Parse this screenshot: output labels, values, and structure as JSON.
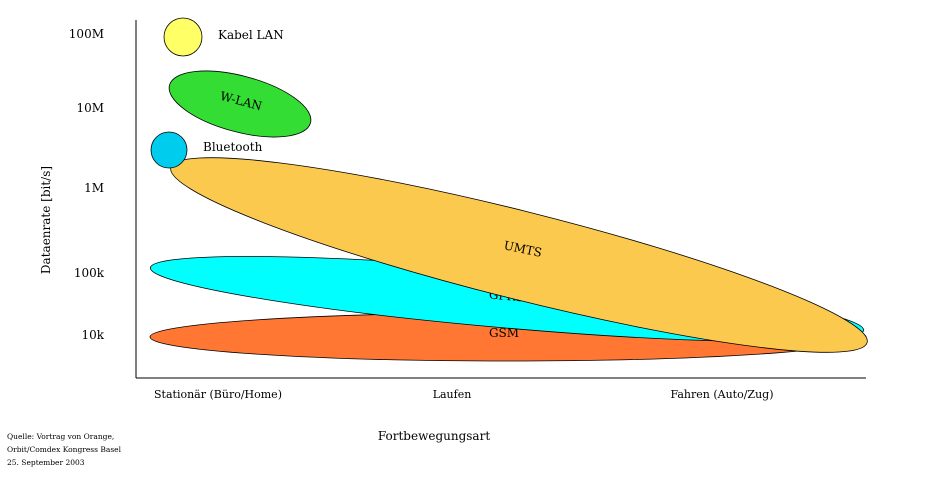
{
  "diagram": {
    "y_axis_title": "Dataenrate [bit/s]",
    "x_axis_title": "Fortbewegungsart",
    "y_ticks": [
      "100M",
      "10M",
      "1M",
      "100k",
      "10k"
    ],
    "x_ticks": [
      "Stationär (Büro/Home)",
      "Laufen",
      "Fahren (Auto/Zug)"
    ],
    "technologies": {
      "kabel_lan": {
        "label": "Kabel LAN",
        "color": "#ffff66"
      },
      "wlan": {
        "label": "W-LAN",
        "color": "#33dd33"
      },
      "bluetooth": {
        "label": "Bluetooth",
        "color": "#00ccee"
      },
      "umts": {
        "label": "UMTS",
        "color": "#fcc94f"
      },
      "gprs": {
        "label": "GPRS",
        "color": "#00ffff"
      },
      "gsm": {
        "label": "GSM",
        "color": "#ff7733"
      }
    },
    "source": [
      "Quelle: Vortrag von Orange,",
      "Orbit/Comdex Kongress Basel",
      "25. September 2003"
    ]
  }
}
